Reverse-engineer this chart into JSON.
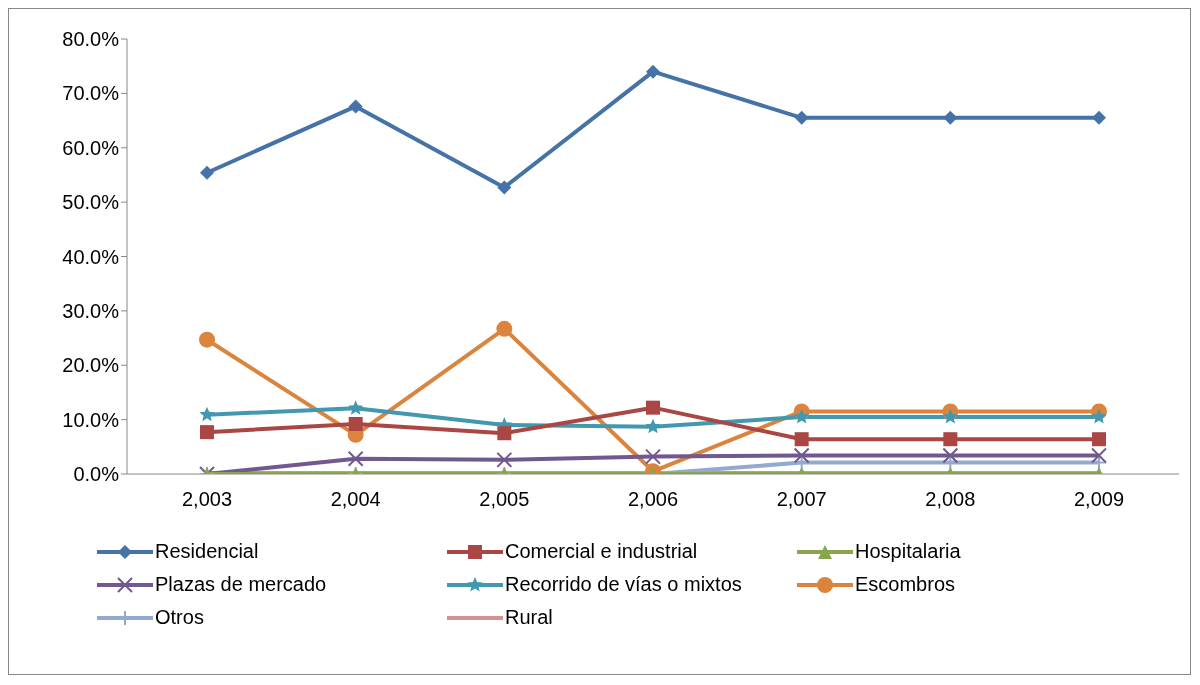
{
  "chart_data": {
    "type": "line",
    "categories": [
      "2,003",
      "2,004",
      "2,005",
      "2,006",
      "2,007",
      "2,008",
      "2,009"
    ],
    "ylim": [
      0,
      80
    ],
    "yticks": [
      {
        "value": 0,
        "label": "0.0%"
      },
      {
        "value": 10,
        "label": "10.0%"
      },
      {
        "value": 20,
        "label": "20.0%"
      },
      {
        "value": 30,
        "label": "30.0%"
      },
      {
        "value": 40,
        "label": "40.0%"
      },
      {
        "value": 50,
        "label": "50.0%"
      },
      {
        "value": 60,
        "label": "60.0%"
      },
      {
        "value": 70,
        "label": "70.0%"
      },
      {
        "value": 80,
        "label": "80.0%"
      }
    ],
    "grid": false,
    "legend": "bottom",
    "line_style": "solid",
    "series": [
      {
        "name": "Residencial",
        "color": "#4572a7",
        "marker": "diamond",
        "values": [
          55.4,
          67.6,
          52.7,
          74.0,
          65.5,
          65.5,
          65.5
        ]
      },
      {
        "name": "Comercial e industrial",
        "color": "#aa4643",
        "marker": "square",
        "values": [
          7.7,
          9.2,
          7.5,
          12.2,
          6.4,
          6.4,
          6.4
        ]
      },
      {
        "name": "Hospitalaria",
        "color": "#89a54e",
        "marker": "triangle",
        "values": [
          0,
          0,
          0,
          0,
          0,
          0,
          0
        ]
      },
      {
        "name": "Plazas de mercado",
        "color": "#71588f",
        "marker": "cross",
        "values": [
          0,
          2.8,
          2.6,
          3.2,
          3.4,
          3.4,
          3.4
        ]
      },
      {
        "name": "Recorrido de vías o mixtos",
        "color": "#4198af",
        "marker": "star",
        "values": [
          10.9,
          12.1,
          9.0,
          8.7,
          10.5,
          10.5,
          10.5
        ]
      },
      {
        "name": "Escombros",
        "color": "#db843d",
        "marker": "circle",
        "values": [
          24.7,
          7.2,
          26.7,
          0.5,
          11.5,
          11.5,
          11.5
        ]
      },
      {
        "name": "Otros",
        "color": "#93a9cf",
        "marker": "plus",
        "values": [
          0,
          0,
          0,
          0,
          2.1,
          2.1,
          2.1
        ]
      },
      {
        "name": "Rural",
        "color": "#d19392",
        "marker": "none",
        "values": [
          0.2,
          0.2,
          0.2,
          0.2,
          0.2,
          0.2,
          0.2
        ]
      }
    ]
  }
}
